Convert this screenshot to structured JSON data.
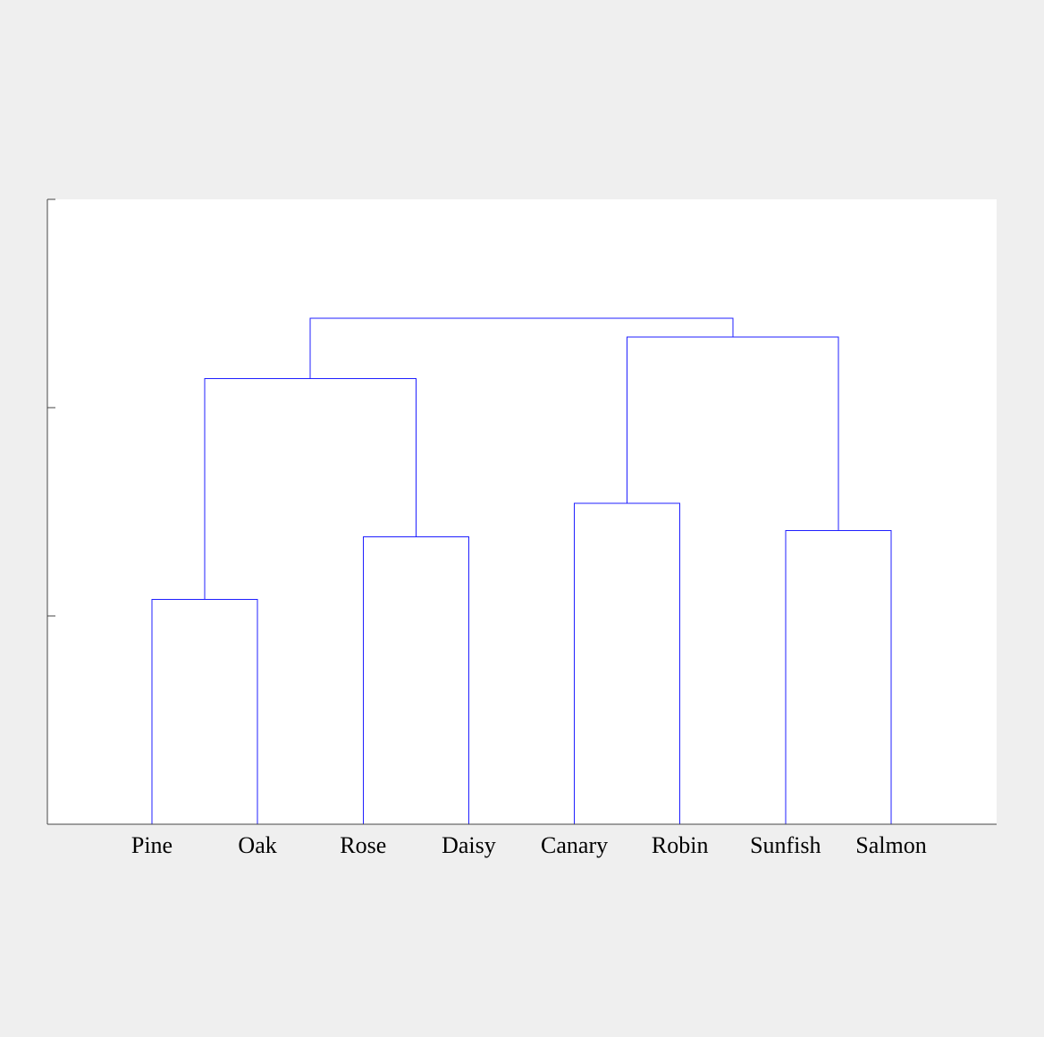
{
  "chart_data": {
    "type": "dendrogram",
    "title": "",
    "xlabel": "",
    "ylabel": "",
    "ylim": [
      0,
      3
    ],
    "yticks": [
      0,
      1,
      2,
      3
    ],
    "grid": false,
    "leaves": [
      "Pine",
      "Oak",
      "Rose",
      "Daisy",
      "Canary",
      "Robin",
      "Sunfish",
      "Salmon"
    ],
    "merges": [
      {
        "id": "c1",
        "left": "Pine",
        "right": "Oak",
        "height": 1.08
      },
      {
        "id": "c2",
        "left": "Rose",
        "right": "Daisy",
        "height": 1.38
      },
      {
        "id": "c3",
        "left": "Canary",
        "right": "Robin",
        "height": 1.54
      },
      {
        "id": "c4",
        "left": "Sunfish",
        "right": "Salmon",
        "height": 1.41
      },
      {
        "id": "c5",
        "left": "c1",
        "right": "c2",
        "height": 2.14
      },
      {
        "id": "c6",
        "left": "c3",
        "right": "c4",
        "height": 2.34
      },
      {
        "id": "c7",
        "left": "c5",
        "right": "c6",
        "height": 2.43
      }
    ],
    "link_color": "#1f1fff",
    "axis_color": "#444444",
    "background_color": "#efefef",
    "plot_background_color": "#ffffff"
  }
}
